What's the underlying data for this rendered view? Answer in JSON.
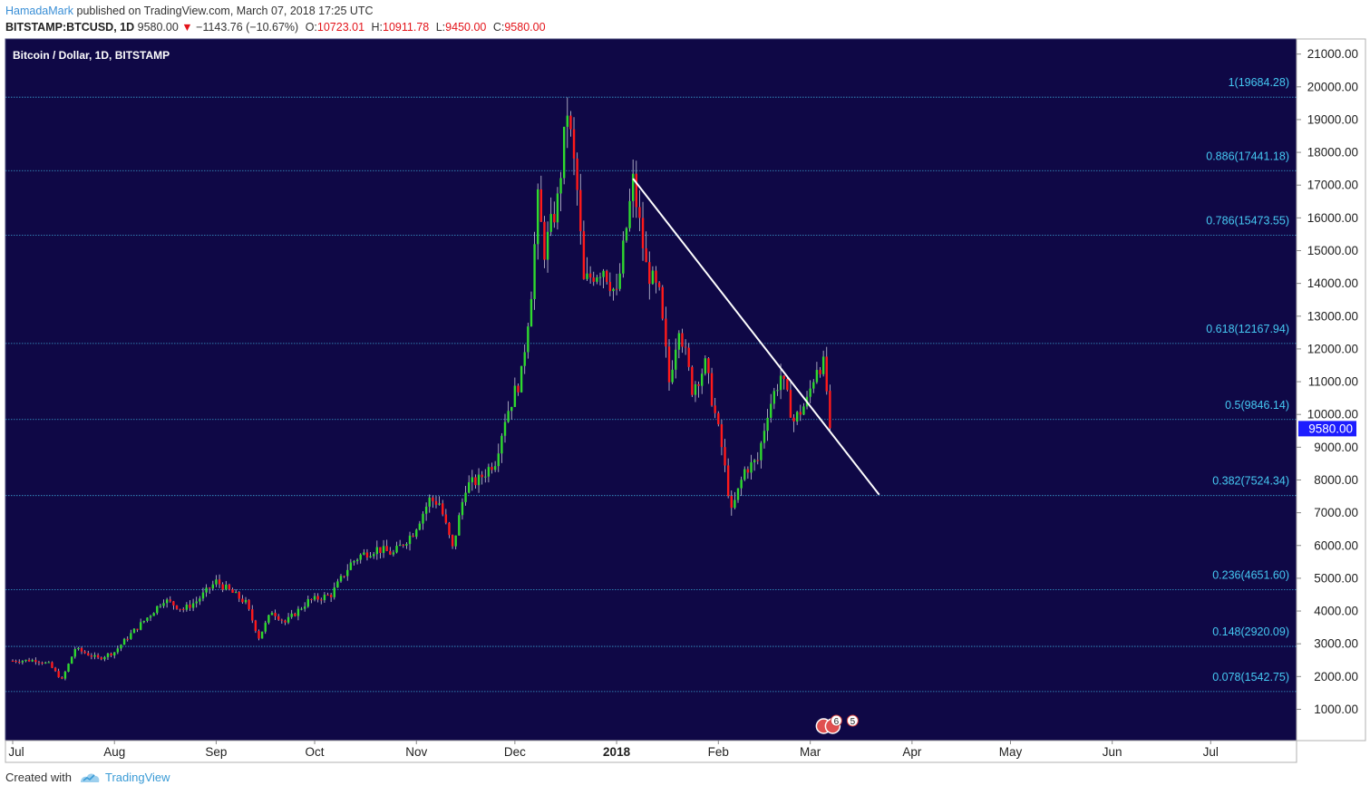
{
  "header": {
    "author": "HamadaMark",
    "published": "published on TradingView.com, March 07, 2018 17:25 UTC"
  },
  "ohlc": {
    "symbol": "BITSTAMP:BTCUSD, 1D",
    "last": "9580.00",
    "change": "−1143.76 (−10.67%)",
    "o_label": "O:",
    "o": "10723.01",
    "h_label": "H:",
    "h": "10911.78",
    "l_label": "L:",
    "l": "9450.00",
    "c_label": "C:",
    "c": "9580.00"
  },
  "footer": {
    "created": "Created with",
    "brand": "TradingView"
  },
  "colors": {
    "background": "#0f0846",
    "up": "#2fd92f",
    "down": "#ff1a1a",
    "fib_line": "#3aa0d0",
    "fib_label": "#45c8f2",
    "trendline": "#ffffff",
    "price_badge": "#1d1dff"
  },
  "chart_data": {
    "type": "candlestick",
    "title": "Bitcoin / Dollar, 1D, BITSTAMP",
    "x_ticks": [
      "Jul",
      "Aug",
      "Sep",
      "Oct",
      "Nov",
      "Dec",
      "2018",
      "Feb",
      "Mar",
      "Apr",
      "May",
      "Jun",
      "Jul"
    ],
    "y_ticks": [
      "21000.00",
      "20000.00",
      "19000.00",
      "18000.00",
      "17000.00",
      "16000.00",
      "15000.00",
      "14000.00",
      "13000.00",
      "12000.00",
      "11000.00",
      "10000.00",
      "9000.00",
      "8000.00",
      "7000.00",
      "6000.00",
      "5000.00",
      "4000.00",
      "3000.00",
      "2000.00",
      "1000.00"
    ],
    "ylim": [
      0,
      21400
    ],
    "last_price": "9580.00",
    "fib_levels": [
      {
        "label": "1(19684.28)",
        "value": 19684.28
      },
      {
        "label": "0.886(17441.18)",
        "value": 17441.18
      },
      {
        "label": "0.786(15473.55)",
        "value": 15473.55
      },
      {
        "label": "0.618(12167.94)",
        "value": 12167.94
      },
      {
        "label": "0.5(9846.14)",
        "value": 9846.14
      },
      {
        "label": "0.382(7524.34)",
        "value": 7524.34
      },
      {
        "label": "0.236(4651.60)",
        "value": 4651.6
      },
      {
        "label": "0.148(2920.09)",
        "value": 2920.09
      },
      {
        "label": "0.078(1542.75)",
        "value": 1542.75
      }
    ],
    "trendline": {
      "from": {
        "date": "2018-01-06",
        "price": 17200
      },
      "to": {
        "date": "2018-03-22",
        "price": 7550
      }
    },
    "event_markers": [
      "6",
      "5"
    ],
    "anchors": [
      [
        "2017-07-01",
        2480
      ],
      [
        "2017-07-08",
        2500
      ],
      [
        "2017-07-12",
        2380
      ],
      [
        "2017-07-16",
        1900
      ],
      [
        "2017-07-20",
        2850
      ],
      [
        "2017-07-27",
        2550
      ],
      [
        "2017-08-01",
        2750
      ],
      [
        "2017-08-05",
        3200
      ],
      [
        "2017-08-12",
        3900
      ],
      [
        "2017-08-16",
        4350
      ],
      [
        "2017-08-22",
        4050
      ],
      [
        "2017-08-26",
        4300
      ],
      [
        "2017-09-01",
        4900
      ],
      [
        "2017-09-06",
        4550
      ],
      [
        "2017-09-10",
        4250
      ],
      [
        "2017-09-14",
        3200
      ],
      [
        "2017-09-18",
        4000
      ],
      [
        "2017-09-22",
        3650
      ],
      [
        "2017-09-29",
        4300
      ],
      [
        "2017-10-06",
        4500
      ],
      [
        "2017-10-12",
        5450
      ],
      [
        "2017-10-15",
        5700
      ],
      [
        "2017-10-20",
        5900
      ],
      [
        "2017-10-25",
        5750
      ],
      [
        "2017-10-31",
        6400
      ],
      [
        "2017-11-05",
        7400
      ],
      [
        "2017-11-08",
        7300
      ],
      [
        "2017-11-12",
        5900
      ],
      [
        "2017-11-16",
        7800
      ],
      [
        "2017-11-20",
        8000
      ],
      [
        "2017-11-25",
        8600
      ],
      [
        "2017-11-28",
        9900
      ],
      [
        "2017-12-03",
        11200
      ],
      [
        "2017-12-06",
        13800
      ],
      [
        "2017-12-08",
        16500
      ],
      [
        "2017-12-10",
        15000
      ],
      [
        "2017-12-14",
        16500
      ],
      [
        "2017-12-17",
        19300
      ],
      [
        "2017-12-20",
        16800
      ],
      [
        "2017-12-22",
        14000
      ],
      [
        "2017-12-25",
        14300
      ],
      [
        "2017-12-28",
        14500
      ],
      [
        "2018-01-01",
        13600
      ],
      [
        "2018-01-06",
        17100
      ],
      [
        "2018-01-10",
        14500
      ],
      [
        "2018-01-14",
        13600
      ],
      [
        "2018-01-17",
        11000
      ],
      [
        "2018-01-20",
        12800
      ],
      [
        "2018-01-24",
        10800
      ],
      [
        "2018-01-28",
        11500
      ],
      [
        "2018-02-02",
        9000
      ],
      [
        "2018-02-05",
        7000
      ],
      [
        "2018-02-09",
        8300
      ],
      [
        "2018-02-13",
        8600
      ],
      [
        "2018-02-16",
        10100
      ],
      [
        "2018-02-20",
        11200
      ],
      [
        "2018-02-24",
        9800
      ],
      [
        "2018-02-28",
        10400
      ],
      [
        "2018-03-03",
        11500
      ],
      [
        "2018-03-05",
        11500
      ],
      [
        "2018-03-06",
        10720
      ],
      [
        "2018-03-07",
        9580
      ]
    ]
  }
}
